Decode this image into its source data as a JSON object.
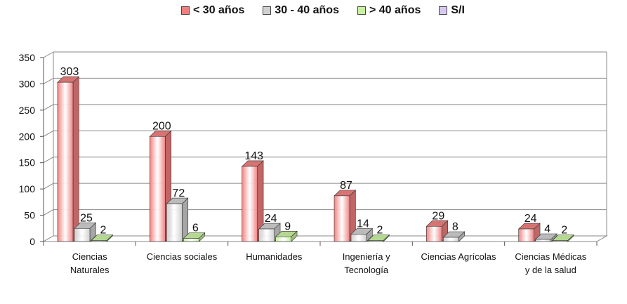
{
  "chart_data": {
    "type": "bar",
    "categories": [
      [
        "Ciencias",
        "Naturales"
      ],
      [
        "Ciencias sociales"
      ],
      [
        "Humanidades"
      ],
      [
        "Ingeniería y",
        "Tecnología"
      ],
      [
        "Ciencias Agrícolas"
      ],
      [
        "Ciencias Médicas",
        "y de la salud"
      ]
    ],
    "series": [
      {
        "name": "< 30 años",
        "color": "#f08080",
        "values": [
          303,
          200,
          143,
          87,
          29,
          24
        ]
      },
      {
        "name": "30 - 40 años",
        "color": "#d0d0d0",
        "values": [
          25,
          72,
          24,
          14,
          8,
          4
        ]
      },
      {
        "name": "> 40 años",
        "color": "#c8f0a0",
        "values": [
          2,
          6,
          9,
          2,
          null,
          2
        ]
      },
      {
        "name": "S/I",
        "color": "#d8c8f0",
        "values": [
          null,
          null,
          null,
          null,
          null,
          null
        ]
      }
    ],
    "ylim": [
      0,
      350
    ],
    "yticks": [
      0,
      50,
      100,
      150,
      200,
      250,
      300,
      350
    ],
    "grid": true,
    "legend_position": "top",
    "title": "",
    "xlabel": "",
    "ylabel": ""
  }
}
